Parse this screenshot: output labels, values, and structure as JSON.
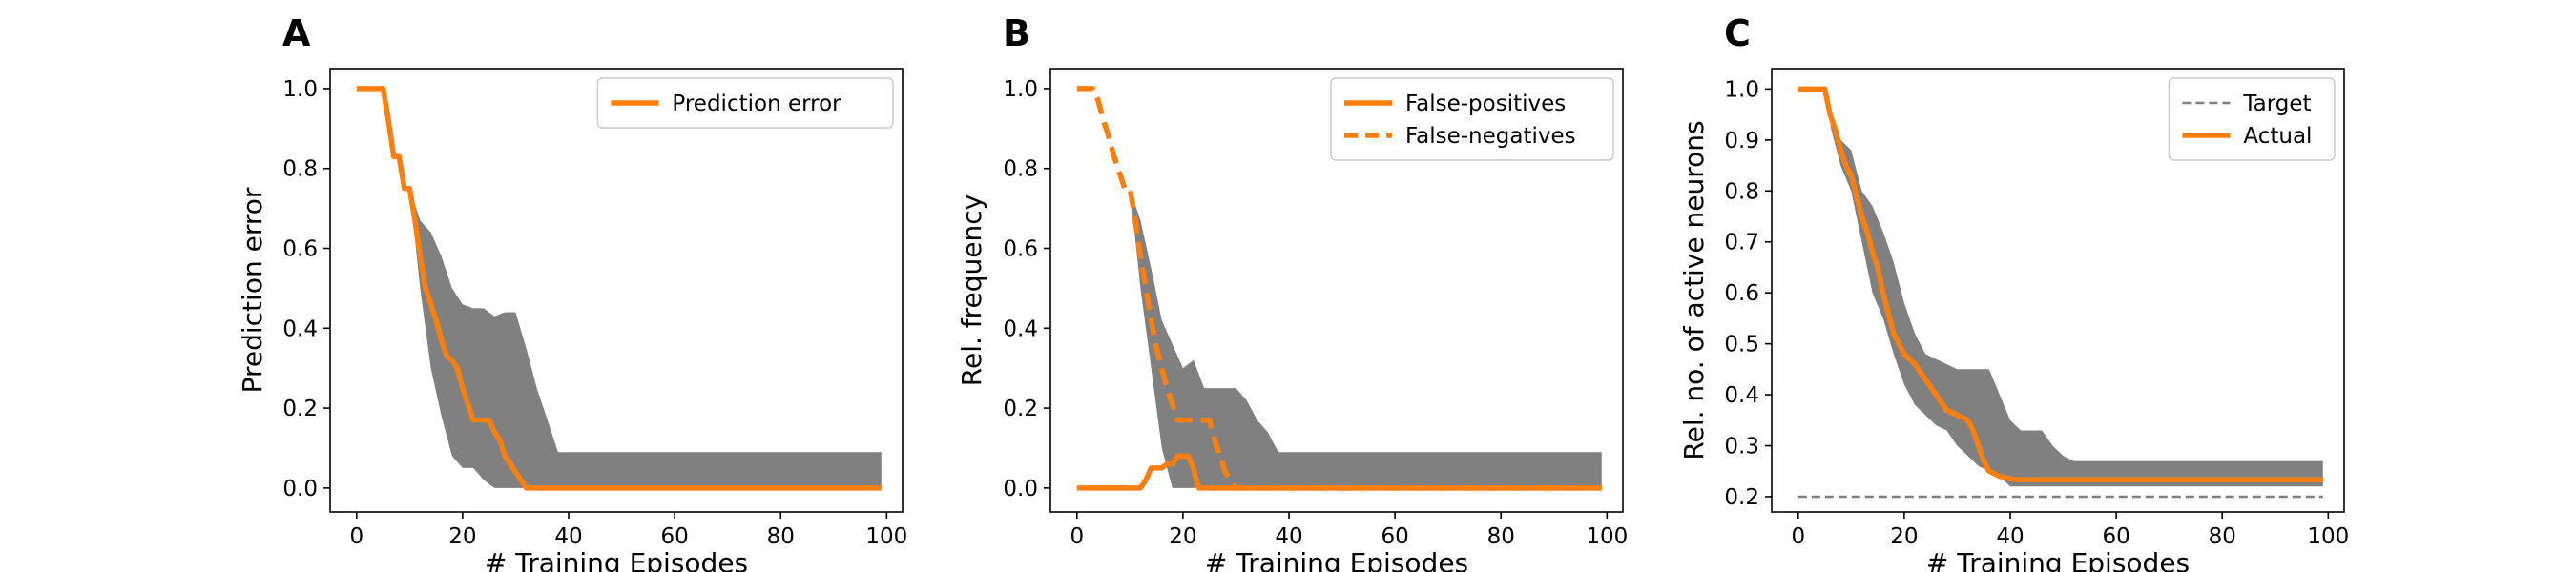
{
  "figure": {
    "panels": [
      "A",
      "B",
      "C"
    ]
  },
  "colors": {
    "line": "#ff7f0e",
    "band": "#808080",
    "target": "#7f7f7f",
    "axis": "#000000"
  },
  "chart_data": [
    {
      "id": "A",
      "type": "line",
      "xlabel": "# Training Episodes",
      "ylabel": "Prediction error",
      "xlim": [
        -5,
        103
      ],
      "ylim": [
        -0.06,
        1.05
      ],
      "xticks": [
        0,
        20,
        40,
        60,
        80,
        100
      ],
      "yticks": [
        0.0,
        0.2,
        0.4,
        0.6,
        0.8,
        1.0
      ],
      "ytick_labels": [
        "0.0",
        "0.2",
        "0.4",
        "0.6",
        "0.8",
        "1.0"
      ],
      "legend_position": "top-right",
      "band": {
        "x": [
          10,
          12,
          14,
          16,
          18,
          20,
          22,
          24,
          26,
          28,
          30,
          32,
          34,
          36,
          38,
          40,
          42,
          60,
          80,
          99
        ],
        "upper": [
          0.75,
          0.67,
          0.64,
          0.58,
          0.5,
          0.46,
          0.45,
          0.45,
          0.43,
          0.44,
          0.44,
          0.35,
          0.25,
          0.17,
          0.09,
          0.09,
          0.09,
          0.09,
          0.09,
          0.09
        ],
        "lower": [
          0.75,
          0.5,
          0.3,
          0.18,
          0.08,
          0.05,
          0.05,
          0.02,
          0.0,
          0.0,
          0.0,
          0.0,
          0.0,
          0.0,
          0.0,
          0.0,
          0.0,
          0.0,
          0.0,
          0.0
        ]
      },
      "series": [
        {
          "name": "Prediction error",
          "style": "solid",
          "x": [
            0,
            5,
            6,
            7,
            8,
            9,
            10,
            11,
            12,
            13,
            14,
            15,
            16,
            17,
            18,
            19,
            20,
            21,
            22,
            23,
            24,
            25,
            26,
            27,
            28,
            29,
            30,
            31,
            32,
            33,
            34,
            35,
            40,
            60,
            80,
            99
          ],
          "y": [
            1.0,
            1.0,
            0.92,
            0.83,
            0.83,
            0.75,
            0.75,
            0.67,
            0.58,
            0.5,
            0.46,
            0.42,
            0.37,
            0.33,
            0.32,
            0.3,
            0.25,
            0.21,
            0.17,
            0.17,
            0.17,
            0.17,
            0.14,
            0.12,
            0.08,
            0.06,
            0.04,
            0.02,
            0.0,
            0.0,
            0.0,
            0.0,
            0.0,
            0.0,
            0.0,
            0.0
          ]
        }
      ]
    },
    {
      "id": "B",
      "type": "line",
      "xlabel": "# Training Episodes",
      "ylabel": "Rel. frequency",
      "xlim": [
        -5,
        103
      ],
      "ylim": [
        -0.06,
        1.05
      ],
      "xticks": [
        0,
        20,
        40,
        60,
        80,
        100
      ],
      "yticks": [
        0.0,
        0.2,
        0.4,
        0.6,
        0.8,
        1.0
      ],
      "ytick_labels": [
        "0.0",
        "0.2",
        "0.4",
        "0.6",
        "0.8",
        "1.0"
      ],
      "legend_position": "top-right",
      "band": {
        "x": [
          10,
          12,
          14,
          16,
          18,
          20,
          22,
          24,
          26,
          28,
          30,
          32,
          34,
          36,
          38,
          40,
          42,
          60,
          80,
          99
        ],
        "upper": [
          0.75,
          0.67,
          0.55,
          0.42,
          0.36,
          0.3,
          0.32,
          0.25,
          0.25,
          0.25,
          0.25,
          0.22,
          0.17,
          0.14,
          0.09,
          0.09,
          0.09,
          0.09,
          0.09,
          0.09
        ],
        "lower": [
          0.75,
          0.5,
          0.3,
          0.1,
          0.0,
          0.0,
          0.0,
          0.0,
          0.0,
          0.0,
          0.0,
          0.0,
          0.0,
          0.0,
          0.0,
          0.0,
          0.0,
          0.0,
          0.0,
          0.0
        ]
      },
      "series": [
        {
          "name": "False-positives",
          "style": "solid",
          "x": [
            0,
            12,
            13,
            14,
            16,
            17,
            18,
            19,
            20,
            21,
            22,
            22.5,
            23,
            40,
            60,
            80,
            99
          ],
          "y": [
            0.0,
            0.0,
            0.02,
            0.05,
            0.05,
            0.06,
            0.06,
            0.08,
            0.08,
            0.08,
            0.05,
            0.02,
            0.0,
            0.0,
            0.0,
            0.0,
            0.0
          ]
        },
        {
          "name": "False-negatives",
          "style": "dashed",
          "x": [
            0,
            3,
            4,
            5,
            6,
            7,
            8,
            9,
            10,
            11,
            12,
            13,
            14,
            15,
            16,
            17,
            18,
            19,
            20,
            21,
            22,
            23,
            24,
            25,
            26,
            27,
            28,
            29,
            30,
            31,
            99
          ],
          "y": [
            1.0,
            1.0,
            0.97,
            0.92,
            0.88,
            0.83,
            0.79,
            0.75,
            0.75,
            0.67,
            0.58,
            0.5,
            0.42,
            0.35,
            0.3,
            0.25,
            0.21,
            0.17,
            0.17,
            0.17,
            0.17,
            0.17,
            0.17,
            0.17,
            0.12,
            0.08,
            0.04,
            0.02,
            0.0,
            0.0,
            0.0
          ]
        }
      ]
    },
    {
      "id": "C",
      "type": "line",
      "xlabel": "# Training Episodes",
      "ylabel": "Rel. no. of active neurons",
      "xlim": [
        -5,
        103
      ],
      "ylim": [
        0.17,
        1.04
      ],
      "xticks": [
        0,
        20,
        40,
        60,
        80,
        100
      ],
      "yticks": [
        0.2,
        0.3,
        0.4,
        0.5,
        0.6,
        0.7,
        0.8,
        0.9,
        1.0
      ],
      "ytick_labels": [
        "0.2",
        "0.3",
        "0.4",
        "0.5",
        "0.6",
        "0.7",
        "0.8",
        "0.9",
        "1.0"
      ],
      "legend_position": "top-right",
      "band": {
        "x": [
          4,
          5,
          6,
          8,
          10,
          12,
          14,
          16,
          18,
          20,
          22,
          24,
          26,
          28,
          30,
          32,
          34,
          36,
          38,
          40,
          42,
          44,
          46,
          48,
          50,
          52,
          60,
          80,
          99
        ],
        "upper": [
          0.96,
          0.96,
          0.93,
          0.9,
          0.88,
          0.8,
          0.77,
          0.72,
          0.66,
          0.58,
          0.52,
          0.48,
          0.47,
          0.46,
          0.45,
          0.45,
          0.45,
          0.45,
          0.4,
          0.35,
          0.33,
          0.33,
          0.33,
          0.3,
          0.28,
          0.27,
          0.27,
          0.27,
          0.27
        ],
        "lower": [
          0.96,
          0.96,
          0.93,
          0.85,
          0.8,
          0.7,
          0.6,
          0.55,
          0.48,
          0.42,
          0.38,
          0.36,
          0.34,
          0.33,
          0.3,
          0.28,
          0.26,
          0.25,
          0.24,
          0.22,
          0.22,
          0.22,
          0.22,
          0.22,
          0.22,
          0.22,
          0.22,
          0.22,
          0.22
        ]
      },
      "series": [
        {
          "name": "Target",
          "style": "dashed-thin",
          "x": [
            0,
            99
          ],
          "y": [
            0.2,
            0.2
          ]
        },
        {
          "name": "Actual",
          "style": "solid",
          "x": [
            0,
            5,
            6,
            7,
            8,
            9,
            10,
            11,
            12,
            13,
            14,
            15,
            16,
            17,
            18,
            19,
            20,
            22,
            24,
            26,
            28,
            30,
            32,
            33,
            34,
            35,
            36,
            38,
            40,
            42,
            60,
            80,
            99
          ],
          "y": [
            1.0,
            1.0,
            0.95,
            0.92,
            0.88,
            0.85,
            0.83,
            0.79,
            0.75,
            0.72,
            0.68,
            0.65,
            0.6,
            0.56,
            0.52,
            0.5,
            0.48,
            0.46,
            0.43,
            0.4,
            0.37,
            0.36,
            0.35,
            0.33,
            0.3,
            0.27,
            0.25,
            0.24,
            0.235,
            0.233,
            0.233,
            0.233,
            0.233
          ]
        }
      ]
    }
  ]
}
